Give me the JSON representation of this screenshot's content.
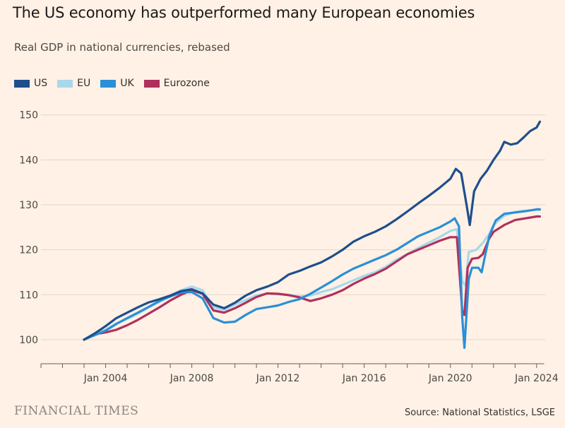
{
  "title": "The US economy has outperformed many European economies",
  "subtitle": "Real GDP in national currencies, rebased",
  "footer": {
    "brand": "FINANCIAL TIMES",
    "source": "Source: National Statistics, LSGE"
  },
  "colors": {
    "background": "#fff1e5",
    "US": "#1f4e8c",
    "EU": "#a8d8ea",
    "UK": "#2a8fd6",
    "Eurozone": "#b0305c"
  },
  "chart_data": {
    "type": "line",
    "x_unit": "year",
    "xlim": [
      2001.0,
      2024.4
    ],
    "ylim": [
      97,
      152
    ],
    "y_ticks": [
      100,
      110,
      120,
      130,
      140,
      150
    ],
    "x_ticks": [
      {
        "value": 2004,
        "label": "Jan 2004"
      },
      {
        "value": 2008,
        "label": "Jan 2008"
      },
      {
        "value": 2012,
        "label": "Jan 2012"
      },
      {
        "value": 2016,
        "label": "Jan 2016"
      },
      {
        "value": 2020,
        "label": "Jan 2020"
      },
      {
        "value": 2024,
        "label": "Jan 2024"
      }
    ],
    "grid": true,
    "legend_position": "top-left",
    "series": [
      {
        "name": "US",
        "points": [
          [
            2003.0,
            100.0
          ],
          [
            2003.5,
            101.4
          ],
          [
            2004.0,
            103.0
          ],
          [
            2004.5,
            104.8
          ],
          [
            2005.0,
            106.0
          ],
          [
            2005.5,
            107.2
          ],
          [
            2006.0,
            108.3
          ],
          [
            2006.5,
            109.0
          ],
          [
            2007.0,
            109.8
          ],
          [
            2007.5,
            110.8
          ],
          [
            2008.0,
            111.2
          ],
          [
            2008.5,
            110.3
          ],
          [
            2009.0,
            107.8
          ],
          [
            2009.5,
            107.0
          ],
          [
            2010.0,
            108.2
          ],
          [
            2010.5,
            109.8
          ],
          [
            2011.0,
            111.0
          ],
          [
            2011.5,
            111.8
          ],
          [
            2012.0,
            112.8
          ],
          [
            2012.5,
            114.5
          ],
          [
            2013.0,
            115.3
          ],
          [
            2013.5,
            116.3
          ],
          [
            2014.0,
            117.2
          ],
          [
            2014.5,
            118.5
          ],
          [
            2015.0,
            120.0
          ],
          [
            2015.5,
            121.8
          ],
          [
            2016.0,
            123.0
          ],
          [
            2016.5,
            124.0
          ],
          [
            2017.0,
            125.2
          ],
          [
            2017.5,
            126.8
          ],
          [
            2018.0,
            128.5
          ],
          [
            2018.5,
            130.3
          ],
          [
            2019.0,
            132.0
          ],
          [
            2019.5,
            133.8
          ],
          [
            2020.0,
            135.8
          ],
          [
            2020.25,
            138.0
          ],
          [
            2020.5,
            137.0
          ],
          [
            2020.75,
            130.0
          ],
          [
            2020.9,
            125.5
          ],
          [
            2021.1,
            133.0
          ],
          [
            2021.4,
            135.8
          ],
          [
            2021.7,
            137.6
          ],
          [
            2022.0,
            140.0
          ],
          [
            2022.3,
            142.0
          ],
          [
            2022.5,
            144.0
          ],
          [
            2022.8,
            143.4
          ],
          [
            2023.1,
            143.7
          ],
          [
            2023.4,
            145.0
          ],
          [
            2023.7,
            146.4
          ],
          [
            2024.0,
            147.2
          ],
          [
            2024.15,
            148.5
          ]
        ]
      },
      {
        "name": "EU",
        "points": [
          [
            2003.0,
            100.0
          ],
          [
            2003.5,
            101.3
          ],
          [
            2004.0,
            102.2
          ],
          [
            2004.5,
            103.6
          ],
          [
            2005.0,
            104.6
          ],
          [
            2005.5,
            105.8
          ],
          [
            2006.0,
            107.2
          ],
          [
            2006.5,
            108.4
          ],
          [
            2007.0,
            109.8
          ],
          [
            2007.5,
            111.0
          ],
          [
            2008.0,
            111.8
          ],
          [
            2008.5,
            111.0
          ],
          [
            2009.0,
            107.2
          ],
          [
            2009.5,
            106.6
          ],
          [
            2010.0,
            107.8
          ],
          [
            2010.5,
            108.8
          ],
          [
            2011.0,
            109.8
          ],
          [
            2011.5,
            110.3
          ],
          [
            2012.0,
            110.1
          ],
          [
            2012.5,
            110.0
          ],
          [
            2013.0,
            109.6
          ],
          [
            2013.5,
            109.8
          ],
          [
            2014.0,
            110.6
          ],
          [
            2014.5,
            111.2
          ],
          [
            2015.0,
            112.2
          ],
          [
            2015.5,
            113.2
          ],
          [
            2016.0,
            114.2
          ],
          [
            2016.5,
            115.0
          ],
          [
            2017.0,
            116.2
          ],
          [
            2017.5,
            117.8
          ],
          [
            2018.0,
            119.0
          ],
          [
            2018.5,
            120.4
          ],
          [
            2019.0,
            121.6
          ],
          [
            2019.5,
            122.8
          ],
          [
            2020.0,
            124.2
          ],
          [
            2020.3,
            124.6
          ],
          [
            2020.55,
            113.0
          ],
          [
            2020.7,
            112.0
          ],
          [
            2020.85,
            119.5
          ],
          [
            2021.2,
            120.0
          ],
          [
            2021.5,
            121.5
          ],
          [
            2021.8,
            123.5
          ],
          [
            2022.0,
            125.5
          ],
          [
            2022.5,
            127.6
          ],
          [
            2023.0,
            128.4
          ],
          [
            2023.5,
            128.7
          ],
          [
            2024.0,
            128.9
          ],
          [
            2024.15,
            128.9
          ]
        ]
      },
      {
        "name": "UK",
        "points": [
          [
            2003.0,
            100.0
          ],
          [
            2003.5,
            101.0
          ],
          [
            2004.0,
            102.0
          ],
          [
            2004.5,
            103.5
          ],
          [
            2005.0,
            104.8
          ],
          [
            2005.5,
            106.0
          ],
          [
            2006.0,
            107.3
          ],
          [
            2006.5,
            108.6
          ],
          [
            2007.0,
            109.6
          ],
          [
            2007.5,
            110.5
          ],
          [
            2008.0,
            110.6
          ],
          [
            2008.5,
            109.2
          ],
          [
            2009.0,
            104.8
          ],
          [
            2009.5,
            103.8
          ],
          [
            2010.0,
            104.0
          ],
          [
            2010.5,
            105.5
          ],
          [
            2011.0,
            106.8
          ],
          [
            2011.5,
            107.2
          ],
          [
            2012.0,
            107.6
          ],
          [
            2012.5,
            108.4
          ],
          [
            2013.0,
            109.0
          ],
          [
            2013.5,
            110.2
          ],
          [
            2014.0,
            111.6
          ],
          [
            2014.5,
            113.0
          ],
          [
            2015.0,
            114.5
          ],
          [
            2015.5,
            115.8
          ],
          [
            2016.0,
            116.8
          ],
          [
            2016.5,
            117.8
          ],
          [
            2017.0,
            118.8
          ],
          [
            2017.5,
            120.0
          ],
          [
            2018.0,
            121.5
          ],
          [
            2018.5,
            123.0
          ],
          [
            2019.0,
            124.0
          ],
          [
            2019.5,
            125.0
          ],
          [
            2020.0,
            126.3
          ],
          [
            2020.2,
            127.0
          ],
          [
            2020.4,
            125.2
          ],
          [
            2020.55,
            105.0
          ],
          [
            2020.65,
            98.2
          ],
          [
            2020.85,
            113.5
          ],
          [
            2021.0,
            116.0
          ],
          [
            2021.3,
            116.0
          ],
          [
            2021.45,
            115.0
          ],
          [
            2021.6,
            118.5
          ],
          [
            2021.8,
            123.0
          ],
          [
            2022.1,
            126.5
          ],
          [
            2022.5,
            128.0
          ],
          [
            2023.0,
            128.3
          ],
          [
            2023.5,
            128.6
          ],
          [
            2024.0,
            129.0
          ],
          [
            2024.15,
            129.0
          ]
        ]
      },
      {
        "name": "Eurozone",
        "points": [
          [
            2003.0,
            100.0
          ],
          [
            2003.5,
            101.2
          ],
          [
            2004.0,
            101.6
          ],
          [
            2004.5,
            102.2
          ],
          [
            2005.0,
            103.2
          ],
          [
            2005.5,
            104.4
          ],
          [
            2006.0,
            105.8
          ],
          [
            2006.5,
            107.2
          ],
          [
            2007.0,
            108.7
          ],
          [
            2007.5,
            110.0
          ],
          [
            2008.0,
            111.0
          ],
          [
            2008.5,
            110.2
          ],
          [
            2009.0,
            106.5
          ],
          [
            2009.5,
            106.0
          ],
          [
            2010.0,
            107.0
          ],
          [
            2010.5,
            108.2
          ],
          [
            2011.0,
            109.5
          ],
          [
            2011.5,
            110.3
          ],
          [
            2012.0,
            110.2
          ],
          [
            2012.5,
            109.9
          ],
          [
            2013.0,
            109.4
          ],
          [
            2013.5,
            108.6
          ],
          [
            2014.0,
            109.2
          ],
          [
            2014.5,
            110.0
          ],
          [
            2015.0,
            111.0
          ],
          [
            2015.5,
            112.4
          ],
          [
            2016.0,
            113.6
          ],
          [
            2016.5,
            114.6
          ],
          [
            2017.0,
            115.8
          ],
          [
            2017.5,
            117.4
          ],
          [
            2018.0,
            119.0
          ],
          [
            2018.5,
            120.0
          ],
          [
            2019.0,
            121.0
          ],
          [
            2019.5,
            122.0
          ],
          [
            2020.0,
            122.8
          ],
          [
            2020.3,
            122.8
          ],
          [
            2020.55,
            106.5
          ],
          [
            2020.65,
            105.5
          ],
          [
            2020.8,
            116.0
          ],
          [
            2021.0,
            118.0
          ],
          [
            2021.3,
            118.2
          ],
          [
            2021.5,
            119.0
          ],
          [
            2021.8,
            122.5
          ],
          [
            2022.0,
            124.0
          ],
          [
            2022.5,
            125.5
          ],
          [
            2023.0,
            126.6
          ],
          [
            2023.5,
            127.0
          ],
          [
            2024.0,
            127.4
          ],
          [
            2024.15,
            127.4
          ]
        ]
      }
    ]
  }
}
